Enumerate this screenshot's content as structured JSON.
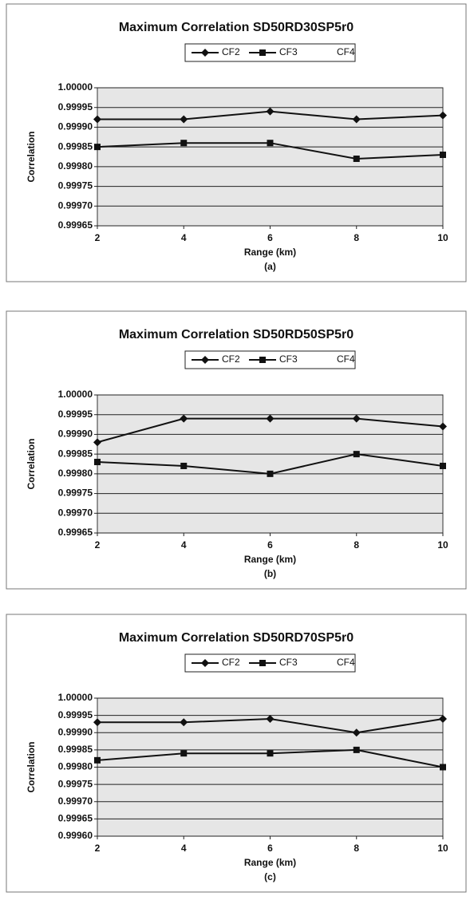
{
  "chart_data": [
    {
      "type": "line",
      "title": "Maximum Correlation SD50RD30SP5r0",
      "x_label": "Range (km)",
      "y_label": "Correlation",
      "caption": "(a)",
      "x": [
        2,
        4,
        6,
        8,
        10
      ],
      "xlim": [
        2,
        10
      ],
      "xticks": [
        2,
        4,
        6,
        8,
        10
      ],
      "ylim": [
        0.99965,
        1.0
      ],
      "yticks": [
        {
          "value": 0.99965,
          "label": "0.99965"
        },
        {
          "value": 0.9997,
          "label": "0.99970"
        },
        {
          "value": 0.99975,
          "label": "0.99975"
        },
        {
          "value": 0.9998,
          "label": "0.99980"
        },
        {
          "value": 0.99985,
          "label": "0.99985"
        },
        {
          "value": 0.9999,
          "label": "0.99990"
        },
        {
          "value": 0.99995,
          "label": "0.99995"
        },
        {
          "value": 1.0,
          "label": "1.00000"
        }
      ],
      "grid": true,
      "series": [
        {
          "name": "CF2",
          "color": "#111111",
          "marker": "diamond",
          "values": [
            0.99992,
            0.99992,
            0.99994,
            0.99992,
            0.99993
          ]
        },
        {
          "name": "CF3",
          "color": "#111111",
          "marker": "square",
          "values": [
            0.99985,
            0.99986,
            0.99986,
            0.99982,
            0.99983
          ]
        },
        {
          "name": "CF4",
          "values": [
            null,
            null,
            null,
            null,
            null
          ]
        }
      ]
    },
    {
      "type": "line",
      "title": "Maximum Correlation SD50RD50SP5r0",
      "x_label": "Range (km)",
      "y_label": "Correlation",
      "caption": "(b)",
      "x": [
        2,
        4,
        6,
        8,
        10
      ],
      "xlim": [
        2,
        10
      ],
      "xticks": [
        2,
        4,
        6,
        8,
        10
      ],
      "ylim": [
        0.99965,
        1.0
      ],
      "yticks": [
        {
          "value": 0.99965,
          "label": "0.99965"
        },
        {
          "value": 0.9997,
          "label": "0.99970"
        },
        {
          "value": 0.99975,
          "label": "0.99975"
        },
        {
          "value": 0.9998,
          "label": "0.99980"
        },
        {
          "value": 0.99985,
          "label": "0.99985"
        },
        {
          "value": 0.9999,
          "label": "0.99990"
        },
        {
          "value": 0.99995,
          "label": "0.99995"
        },
        {
          "value": 1.0,
          "label": "1.00000"
        }
      ],
      "grid": true,
      "series": [
        {
          "name": "CF2",
          "color": "#111111",
          "marker": "diamond",
          "values": [
            0.99988,
            0.99994,
            0.99994,
            0.99994,
            0.99992
          ]
        },
        {
          "name": "CF3",
          "color": "#111111",
          "marker": "square",
          "values": [
            0.99983,
            0.99982,
            0.9998,
            0.99985,
            0.99982
          ]
        },
        {
          "name": "CF4",
          "values": [
            null,
            null,
            null,
            null,
            null
          ]
        }
      ]
    },
    {
      "type": "line",
      "title": "Maximum Correlation SD50RD70SP5r0",
      "x_label": "Range (km)",
      "y_label": "Correlation",
      "caption": "(c)",
      "x": [
        2,
        4,
        6,
        8,
        10
      ],
      "xlim": [
        2,
        10
      ],
      "xticks": [
        2,
        4,
        6,
        8,
        10
      ],
      "ylim": [
        0.9996,
        1.0
      ],
      "yticks": [
        {
          "value": 0.9996,
          "label": "0.99960"
        },
        {
          "value": 0.99965,
          "label": "0.99965"
        },
        {
          "value": 0.9997,
          "label": "0.99970"
        },
        {
          "value": 0.99975,
          "label": "0.99975"
        },
        {
          "value": 0.9998,
          "label": "0.99980"
        },
        {
          "value": 0.99985,
          "label": "0.99985"
        },
        {
          "value": 0.9999,
          "label": "0.99990"
        },
        {
          "value": 0.99995,
          "label": "0.99995"
        },
        {
          "value": 1.0,
          "label": "1.00000"
        }
      ],
      "grid": true,
      "series": [
        {
          "name": "CF2",
          "color": "#111111",
          "marker": "diamond",
          "values": [
            0.99993,
            0.99993,
            0.99994,
            0.9999,
            0.99994
          ]
        },
        {
          "name": "CF3",
          "color": "#111111",
          "marker": "square",
          "values": [
            0.99982,
            0.99984,
            0.99984,
            0.99985,
            0.9998
          ]
        },
        {
          "name": "CF4",
          "values": [
            null,
            null,
            null,
            null,
            null
          ]
        }
      ]
    }
  ]
}
